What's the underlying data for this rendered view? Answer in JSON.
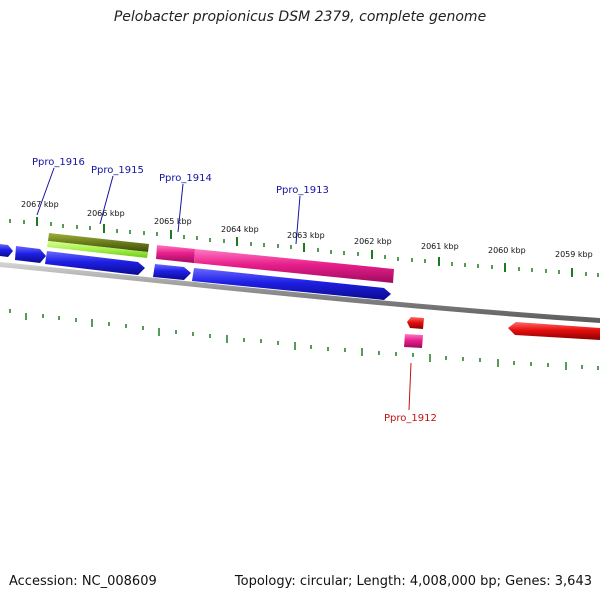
{
  "title": "Pelobacter propionicus DSM 2379, complete genome",
  "footer": {
    "accession": "Accession: NC_008609",
    "summary": "Topology: circular; Length: 4,008,000 bp; Genes: 3,643"
  },
  "colors": {
    "forward_blue": "#1f1fe6",
    "pink": "#e8208c",
    "olive": "#6b7d1c",
    "light_green": "#a8f04a",
    "red": "#e60f0f",
    "backbone": "#9a9a9a",
    "tick": "#1e7a1e",
    "label_blue": "#1414a0",
    "label_red": "#c41010"
  },
  "kbp_ticks": [
    "2067 kbp",
    "2066 kbp",
    "2065 kbp",
    "2064 kbp",
    "2063 kbp",
    "2062 kbp",
    "2061 kbp",
    "2060 kbp",
    "2059 kbp"
  ],
  "gene_labels": [
    "Ppro_1916",
    "Ppro_1915",
    "Ppro_1914",
    "Ppro_1913",
    "Ppro_1912"
  ]
}
